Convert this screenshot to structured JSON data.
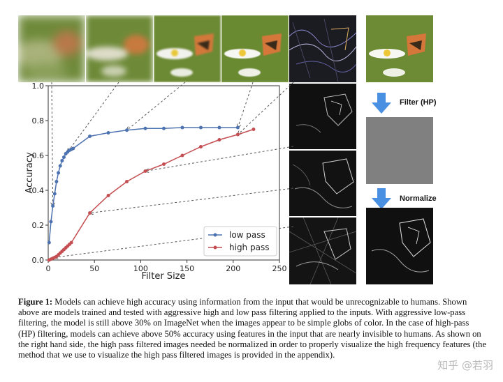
{
  "chart_data": {
    "type": "line",
    "xlabel": "Filter Size",
    "ylabel": "Accuracy",
    "xlim": [
      0,
      250
    ],
    "ylim": [
      0,
      1.0
    ],
    "xticks": [
      0,
      50,
      100,
      150,
      200,
      250
    ],
    "yticks": [
      0.0,
      0.2,
      0.4,
      0.6,
      0.8,
      1.0
    ],
    "legend": "bottom-right",
    "series": [
      {
        "name": "low pass",
        "color": "#4c72b0",
        "x": [
          1,
          3,
          5,
          7,
          9,
          11,
          13,
          15,
          17,
          19,
          21,
          23,
          25,
          27,
          45,
          65,
          85,
          105,
          125,
          145,
          165,
          185,
          205
        ],
        "y": [
          0.1,
          0.22,
          0.31,
          0.38,
          0.45,
          0.5,
          0.54,
          0.57,
          0.59,
          0.61,
          0.62,
          0.63,
          0.635,
          0.64,
          0.71,
          0.73,
          0.745,
          0.755,
          0.755,
          0.76,
          0.76,
          0.76,
          0.76
        ]
      },
      {
        "name": "high pass",
        "color": "#c44e52",
        "x": [
          1,
          3,
          5,
          7,
          9,
          11,
          13,
          15,
          17,
          19,
          21,
          23,
          25,
          45,
          65,
          85,
          105,
          125,
          145,
          165,
          185,
          205,
          222
        ],
        "y": [
          0.0,
          0.005,
          0.01,
          0.015,
          0.02,
          0.03,
          0.04,
          0.05,
          0.06,
          0.07,
          0.08,
          0.09,
          0.1,
          0.27,
          0.37,
          0.45,
          0.51,
          0.55,
          0.6,
          0.65,
          0.69,
          0.72,
          0.75
        ]
      }
    ]
  },
  "panel": {
    "filter_label": "Filter (HP)",
    "normalize_label": "Normalize"
  },
  "caption": {
    "label": "Figure 1:",
    "text": "Models can achieve high accuracy using information from the input that would be unrecognizable to humans. Shown above are models trained and tested with aggressive high and low pass filtering applied to the inputs. With aggressive low-pass filtering, the model is still above 30% on ImageNet when the images appear to be simple globs of color. In the case of high-pass (HP) filtering, models can achieve above 50% accuracy using features in the input that are nearly invisible to humans. As shown on the right hand side, the high pass filtered images needed be normalized in order to properly visualize the high frequency features (the method that we use to visualize the high pass filtered images is provided in the appendix)."
  },
  "watermark": "知乎 @若羽"
}
